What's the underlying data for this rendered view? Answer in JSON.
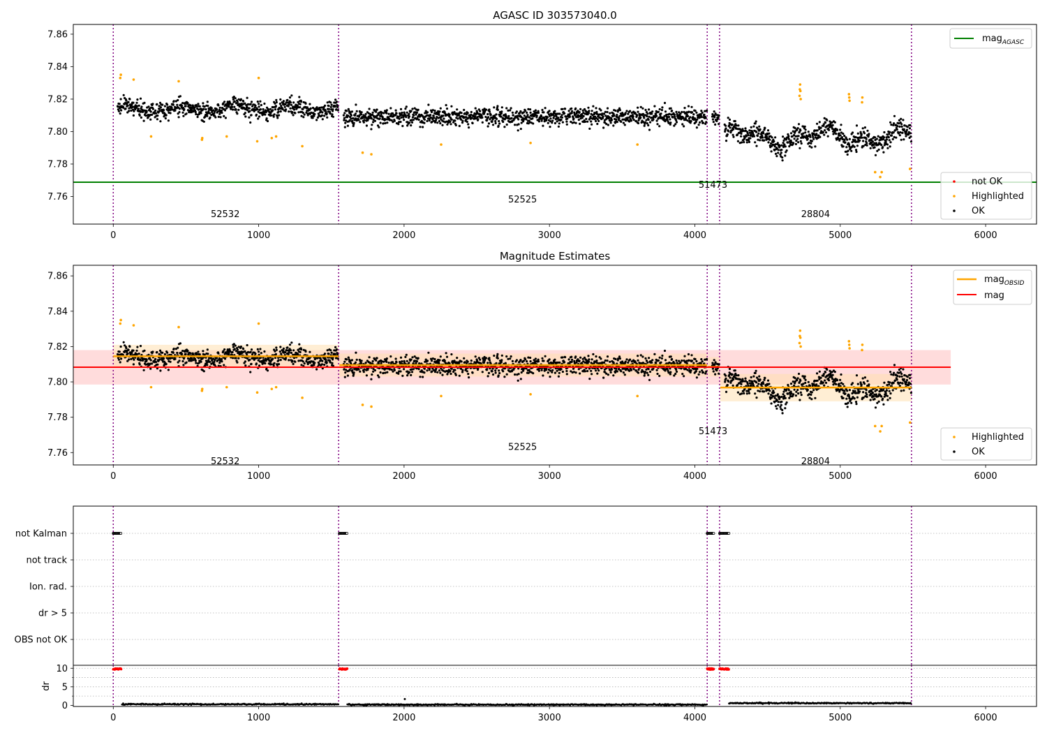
{
  "colors": {
    "ok": "#000000",
    "highlighted": "#ffa500",
    "not_ok": "#ff0000",
    "mag_agasc": "#008000",
    "mag_obsid": "#ffa500",
    "mag": "#ff0000",
    "obs_boundary": "#800080",
    "band_mag": "#ffc0c0",
    "band_obsid": "#ffe0b0"
  },
  "chart_data": [
    {
      "type": "scatter",
      "title": "AGASC ID 303573040.0",
      "xlabel": "",
      "ylabel": "",
      "xlim": [
        -275,
        6350
      ],
      "ylim": [
        7.743,
        7.866
      ],
      "xticks": [
        0,
        1000,
        2000,
        3000,
        4000,
        5000,
        6000
      ],
      "xtick_labels": [
        "0",
        "1000",
        "2000",
        "3000",
        "4000",
        "5000",
        "6000"
      ],
      "yticks": [
        7.76,
        7.78,
        7.8,
        7.82,
        7.84,
        7.86
      ],
      "ytick_labels": [
        "7.76",
        "7.78",
        "7.80",
        "7.82",
        "7.84",
        "7.86"
      ],
      "grid": false,
      "observation_boundaries": [
        0,
        1550,
        4085,
        4170,
        5490
      ],
      "observation_labels": [
        {
          "text": "52532",
          "x": 770,
          "y": 7.749
        },
        {
          "text": "52525",
          "x": 2815,
          "y": 7.758
        },
        {
          "text": "51473",
          "x": 4125,
          "y": 7.767
        },
        {
          "text": "28804",
          "x": 4830,
          "y": 7.749
        }
      ],
      "lines": [
        {
          "name": "mag_AGASC",
          "y": 7.7688,
          "x": [
            -275,
            6350
          ]
        }
      ],
      "segments": [
        {
          "obs": "52532",
          "x": [
            0,
            1550
          ],
          "mean": 7.814,
          "std": 0.0065
        },
        {
          "obs": "52525",
          "x": [
            1555,
            4085
          ],
          "mean": 7.8092,
          "std": 0.0065
        },
        {
          "obs": "51473",
          "x": [
            4090,
            4170
          ],
          "mean": 7.8085,
          "std": 0.005
        },
        {
          "obs": "28804",
          "x": [
            4175,
            5490
          ],
          "mean": 7.7965,
          "std": 0.0075
        }
      ],
      "highlighted_points": [
        [
          48,
          7.833
        ],
        [
          52,
          7.835
        ],
        [
          140,
          7.832
        ],
        [
          260,
          7.797
        ],
        [
          450,
          7.831
        ],
        [
          610,
          7.795
        ],
        [
          612,
          7.796
        ],
        [
          780,
          7.797
        ],
        [
          990,
          7.794
        ],
        [
          1000,
          7.833
        ],
        [
          1090,
          7.796
        ],
        [
          1120,
          7.797
        ],
        [
          1300,
          7.791
        ],
        [
          1715,
          7.787
        ],
        [
          1775,
          7.786
        ],
        [
          2255,
          7.792
        ],
        [
          2870,
          7.793
        ],
        [
          3605,
          7.792
        ],
        [
          4720,
          7.822
        ],
        [
          4722,
          7.826
        ],
        [
          4724,
          7.829
        ],
        [
          4726,
          7.825
        ],
        [
          4728,
          7.82
        ],
        [
          5060,
          7.823
        ],
        [
          5062,
          7.821
        ],
        [
          5064,
          7.819
        ],
        [
          5150,
          7.818
        ],
        [
          5152,
          7.821
        ],
        [
          5240,
          7.775
        ],
        [
          5275,
          7.772
        ],
        [
          5285,
          7.775
        ],
        [
          5480,
          7.777
        ]
      ],
      "legend": {
        "position": "top-right",
        "entries": [
          "mag_AGASC"
        ]
      },
      "legend2": {
        "position": "bottom-right",
        "entries": [
          "not OK",
          "Highlighted",
          "OK"
        ]
      }
    },
    {
      "type": "scatter",
      "title": "Magnitude Estimates",
      "xlabel": "",
      "ylabel": "",
      "xlim": [
        -275,
        6350
      ],
      "ylim": [
        7.753,
        7.866
      ],
      "xticks": [
        0,
        1000,
        2000,
        3000,
        4000,
        5000,
        6000
      ],
      "xtick_labels": [
        "0",
        "1000",
        "2000",
        "3000",
        "4000",
        "5000",
        "6000"
      ],
      "yticks": [
        7.76,
        7.78,
        7.8,
        7.82,
        7.84,
        7.86
      ],
      "ytick_labels": [
        "7.76",
        "7.78",
        "7.80",
        "7.82",
        "7.84",
        "7.86"
      ],
      "grid": false,
      "observation_boundaries": [
        0,
        1550,
        4085,
        4170,
        5490
      ],
      "observation_labels": [
        {
          "text": "52532",
          "x": 770,
          "y": 7.755
        },
        {
          "text": "52525",
          "x": 2815,
          "y": 7.763
        },
        {
          "text": "51473",
          "x": 4125,
          "y": 7.772
        },
        {
          "text": "28804",
          "x": 4830,
          "y": 7.755
        }
      ],
      "mag_line": {
        "name": "mag",
        "y": 7.8083,
        "band": [
          7.7985,
          7.818
        ],
        "x": [
          -275,
          5760
        ]
      },
      "mag_obsid_lines": [
        {
          "x": [
            0,
            1550
          ],
          "y": 7.8145,
          "band": [
            7.808,
            7.821
          ]
        },
        {
          "x": [
            1555,
            4085
          ],
          "y": 7.8095,
          "band": [
            7.803,
            7.816
          ]
        },
        {
          "x": [
            4090,
            4170
          ],
          "y": 7.8085,
          "band": [
            7.803,
            7.814
          ]
        },
        {
          "x": [
            4175,
            5490
          ],
          "y": 7.7968,
          "band": [
            7.789,
            7.8045
          ]
        }
      ],
      "legend": {
        "position": "top-right",
        "entries": [
          "mag_OBSID",
          "mag"
        ]
      },
      "legend2": {
        "position": "bottom-right",
        "entries": [
          "Highlighted",
          "OK"
        ]
      }
    },
    {
      "type": "scatter",
      "title": "",
      "xlim": [
        -275,
        6350
      ],
      "categories": [
        "not Kalman",
        "not track",
        "Ion. rad.",
        "dr > 5",
        "OBS not OK"
      ],
      "flag_intervals": [
        {
          "category": "not Kalman",
          "x": [
            0,
            55
          ]
        },
        {
          "category": "not Kalman",
          "x": [
            1555,
            1610
          ]
        },
        {
          "category": "not Kalman",
          "x": [
            4085,
            4130
          ]
        },
        {
          "category": "not Kalman",
          "x": [
            4170,
            4235
          ]
        }
      ],
      "grid": true
    },
    {
      "type": "scatter",
      "title": "",
      "xlabel": "",
      "ylabel": "dr",
      "xlim": [
        -275,
        6350
      ],
      "ylim": [
        -0.3,
        10.8
      ],
      "yticks": [
        0,
        5,
        10
      ],
      "ytick_labels": [
        "0",
        "5",
        "10"
      ],
      "xticks": [
        0,
        1000,
        2000,
        3000,
        4000,
        5000,
        6000
      ],
      "xtick_labels": [
        "0",
        "1000",
        "2000",
        "3000",
        "4000",
        "5000",
        "6000"
      ],
      "not_ok_clusters": [
        {
          "x": [
            0,
            55
          ],
          "y": 9.8
        },
        {
          "x": [
            1555,
            1610
          ],
          "y": 9.8
        },
        {
          "x": [
            4085,
            4130
          ],
          "y": 9.8
        },
        {
          "x": [
            4170,
            4235
          ],
          "y": 9.8
        }
      ],
      "baseline": [
        {
          "x": [
            60,
            1550
          ],
          "mean": 0.3
        },
        {
          "x": [
            1610,
            4085
          ],
          "mean": 0.2
        },
        {
          "x": [
            4235,
            5490
          ],
          "mean": 0.6
        }
      ],
      "outliers": [
        [
          2005,
          1.7
        ]
      ],
      "grid": true
    }
  ],
  "legend_labels": {
    "mag_agasc_main": "mag",
    "mag_agasc_sub": "AGASC",
    "mag_obsid_main": "mag",
    "mag_obsid_sub": "OBSID",
    "mag": "mag",
    "not_ok": "not OK",
    "highlighted": "Highlighted",
    "ok": "OK"
  }
}
